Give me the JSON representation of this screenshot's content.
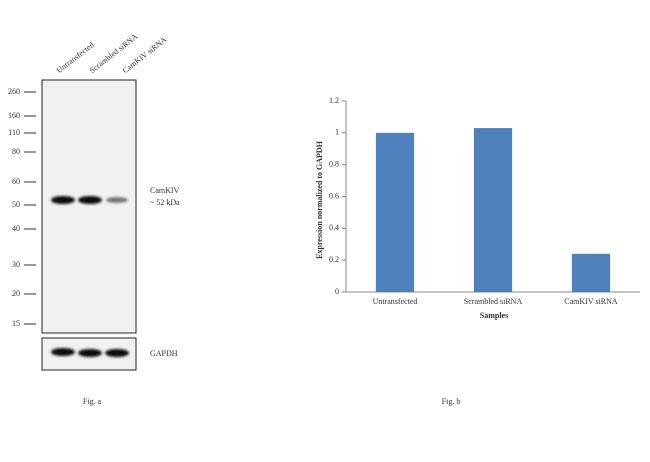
{
  "blot": {
    "lanes": [
      "Untransfected",
      "Scrambled siRNA",
      "CamKIV siRNA"
    ],
    "markers": [
      260,
      160,
      110,
      80,
      60,
      50,
      40,
      30,
      20,
      15
    ],
    "target": "CamKIV",
    "target_size": "~ 52 kDa",
    "loading_control": "GAPDH",
    "caption": "Fig. a"
  },
  "chart_data": {
    "type": "bar",
    "caption": "Fig. b",
    "x_label": "Samples",
    "y_label": "Expression  normalized to GAPDH",
    "categories": [
      "Untransfected",
      "Scrambled siRNA",
      "CamKIV siRNA"
    ],
    "values": [
      1,
      1.03,
      0.24
    ],
    "color": "#4f81bd",
    "ylim": [
      0,
      1.2
    ],
    "yticks": [
      0,
      0.2,
      0.4,
      0.6,
      0.8,
      1,
      1.2
    ]
  }
}
